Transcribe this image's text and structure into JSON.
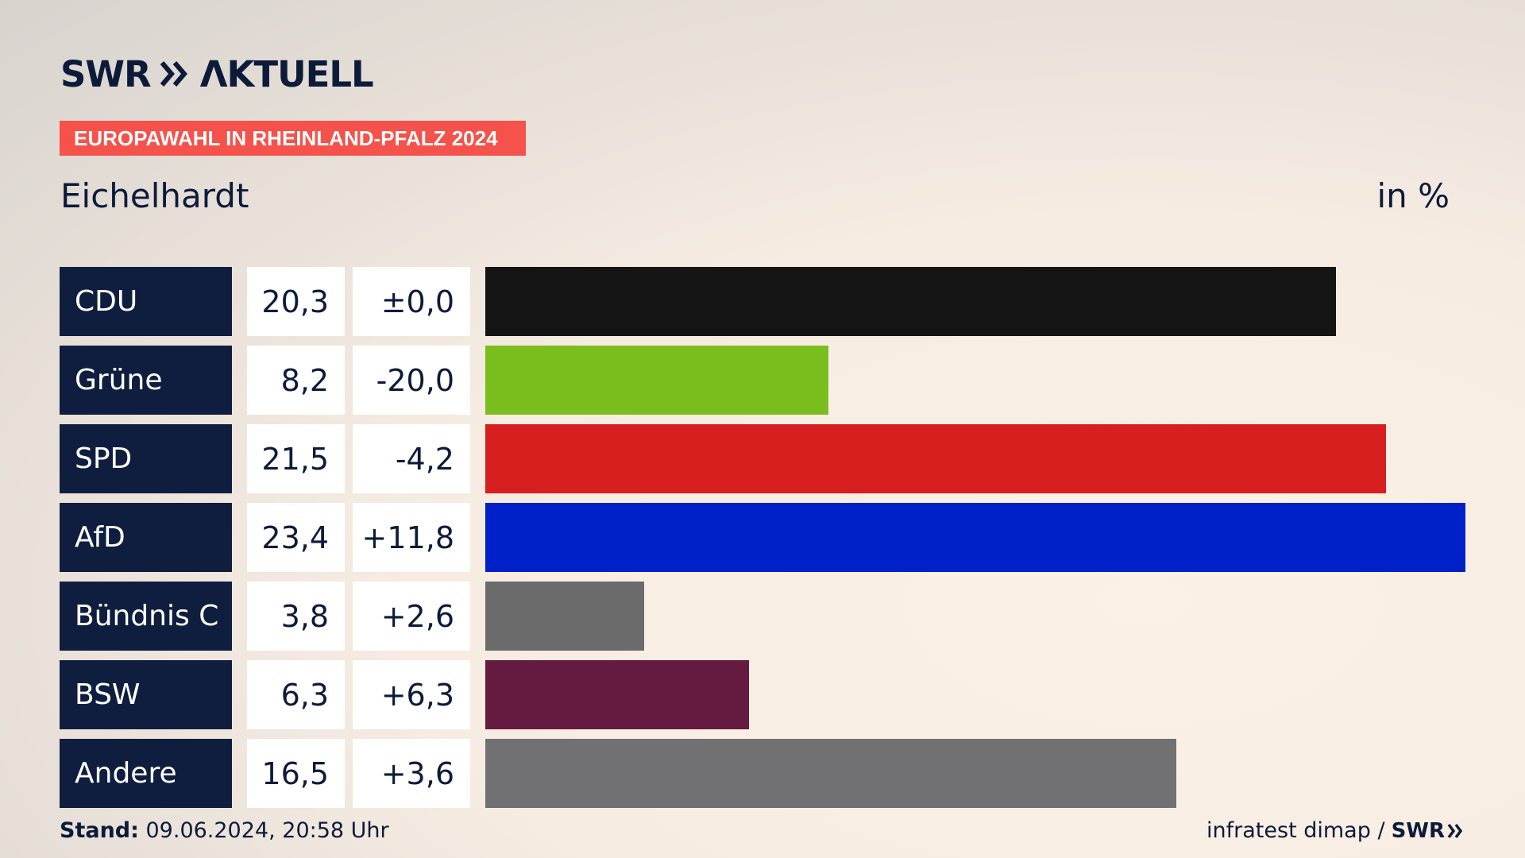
{
  "brand": {
    "logo_text": "SWR AKTUELL"
  },
  "header": {
    "tag": "EUROPAWAHL IN RHEINLAND-PFALZ 2024",
    "place": "Eichelhardt",
    "unit": "in %"
  },
  "chart_data": {
    "type": "bar",
    "orientation": "horizontal",
    "title": "Eichelhardt",
    "unit": "in %",
    "categories": [
      "CDU",
      "Grüne",
      "SPD",
      "AfD",
      "Bündnis C",
      "BSW",
      "Andere"
    ],
    "values": [
      20.3,
      8.2,
      21.5,
      23.4,
      3.8,
      6.3,
      16.5
    ],
    "value_labels": [
      "20,3",
      "8,2",
      "21,5",
      "23,4",
      "3,8",
      "6,3",
      "16,5"
    ],
    "changes": [
      0.0,
      -20.0,
      -4.2,
      11.8,
      2.6,
      6.3,
      3.6
    ],
    "change_labels": [
      "±0,0",
      "-20,0",
      "-4,2",
      "+11,8",
      "+2,6",
      "+6,3",
      "+3,6"
    ],
    "colors": [
      "#141414",
      "#7abe1e",
      "#d81f1f",
      "#0021c8",
      "#6b6b6b",
      "#651a3f",
      "#717174"
    ]
  },
  "footer": {
    "stand_label": "Stand:",
    "stand_value": " 09.06.2024, 20:58 Uhr",
    "source": "infratest dimap /",
    "source_brand": "SWR"
  },
  "icons": {
    "logo_chevron": "double-chevron-icon"
  }
}
